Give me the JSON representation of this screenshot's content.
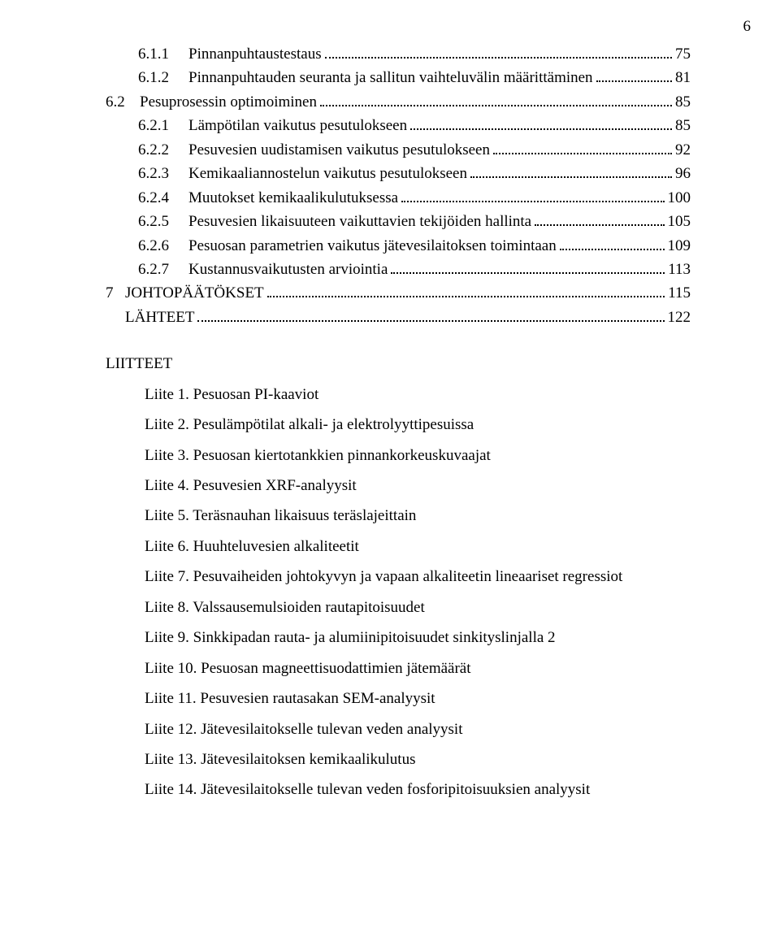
{
  "page_number": "6",
  "toc": [
    {
      "level": 2,
      "num": "6.1.1",
      "title": "Pinnanpuhtaustestaus",
      "page": "75"
    },
    {
      "level": 2,
      "num": "6.1.2",
      "title": "Pinnanpuhtauden seuranta ja sallitun vaihteluvälin määrittäminen",
      "page": "81"
    },
    {
      "level": 1,
      "num": "6.2",
      "title": "Pesuprosessin optimoiminen",
      "page": "85"
    },
    {
      "level": 2,
      "num": "6.2.1",
      "title": "Lämpötilan vaikutus pesutulokseen",
      "page": "85"
    },
    {
      "level": 2,
      "num": "6.2.2",
      "title": "Pesuvesien uudistamisen vaikutus pesutulokseen",
      "page": "92"
    },
    {
      "level": 2,
      "num": "6.2.3",
      "title": "Kemikaaliannostelun vaikutus pesutulokseen",
      "page": "96"
    },
    {
      "level": 2,
      "num": "6.2.4",
      "title": "Muutokset kemikaalikulutuksessa",
      "page": "100"
    },
    {
      "level": 2,
      "num": "6.2.5",
      "title": "Pesuvesien likaisuuteen vaikuttavien tekijöiden hallinta",
      "page": "105"
    },
    {
      "level": 2,
      "num": "6.2.6",
      "title": "Pesuosan parametrien vaikutus jätevesilaitoksen toimintaan",
      "page": "109"
    },
    {
      "level": 2,
      "num": "6.2.7",
      "title": "Kustannusvaikutusten arviointia",
      "page": "113"
    },
    {
      "level": 0,
      "num": "7",
      "title": "JOHTOPÄÄTÖKSET",
      "page": "115"
    },
    {
      "level": 0,
      "num": "",
      "title": "LÄHTEET",
      "page": "122"
    }
  ],
  "attachments_header": "LIITTEET",
  "attachments": [
    "Liite 1. Pesuosan PI-kaaviot",
    "Liite 2. Pesulämpötilat alkali- ja elektrolyyttipesuissa",
    "Liite 3. Pesuosan kiertotankkien pinnankorkeuskuvaajat",
    "Liite 4. Pesuvesien XRF-analyysit",
    "Liite 5. Teräsnauhan likaisuus teräslajeittain",
    "Liite 6. Huuhteluvesien alkaliteetit",
    "Liite 7. Pesuvaiheiden johtokyvyn ja vapaan alkaliteetin lineaariset regressiot",
    "Liite 8. Valssausemulsioiden rautapitoisuudet",
    "Liite 9. Sinkkipadan rauta- ja alumiinipitoisuudet sinkityslinjalla 2",
    "Liite 10. Pesuosan magneettisuodattimien jätemäärät",
    "Liite 11. Pesuvesien rautasakan SEM-analyysit",
    "Liite 12. Jätevesilaitokselle tulevan veden analyysit",
    "Liite 13. Jätevesilaitoksen kemikaalikulutus",
    "Liite 14. Jätevesilaitokselle tulevan veden fosforipitoisuuksien analyysit"
  ]
}
